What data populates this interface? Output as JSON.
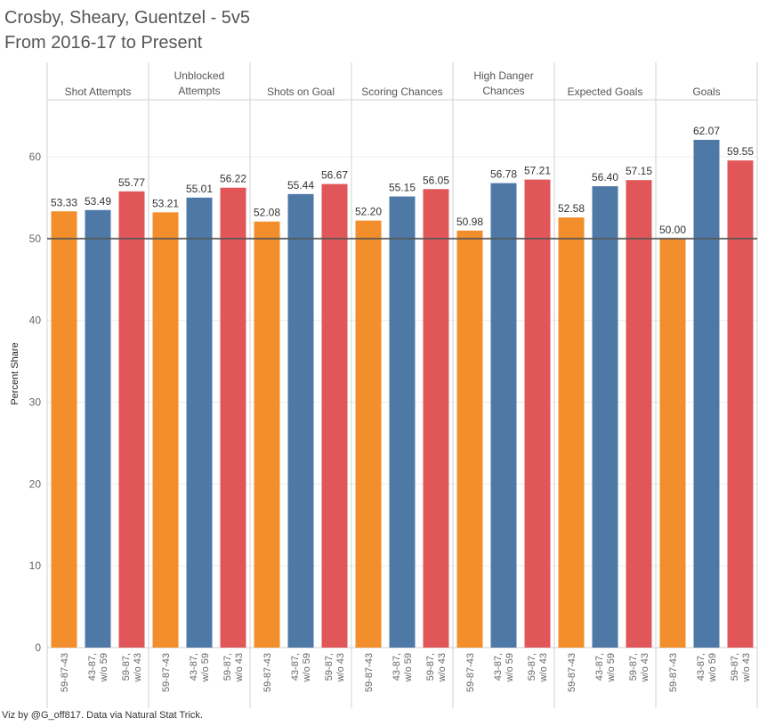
{
  "title_line1": "Crosby, Sheary, Guentzel - 5v5",
  "title_line2": "From 2016-17 to Present",
  "footer": "Viz by @G_off817. Data via Natural Stat Trick.",
  "chart_data": {
    "type": "bar",
    "ylabel": "Percent Share",
    "ylim": [
      0,
      66
    ],
    "yticks": [
      0,
      10,
      20,
      30,
      40,
      50,
      60
    ],
    "reference_line": 50,
    "grid": true,
    "panels": [
      "Shot Attempts",
      "Unblocked Attempts",
      "Shots on Goal",
      "Scoring Chances",
      "High Danger Chances",
      "Expected Goals",
      "Goals"
    ],
    "subcategories": [
      "59-87-43",
      "43-87, w/o 59",
      "59-87, w/o 43"
    ],
    "colors": [
      "#f28e2b",
      "#4e79a7",
      "#e15759"
    ],
    "values": [
      [
        53.33,
        53.49,
        55.77
      ],
      [
        53.21,
        55.01,
        56.22
      ],
      [
        52.08,
        55.44,
        56.67
      ],
      [
        52.2,
        55.15,
        56.05
      ],
      [
        50.98,
        56.78,
        57.21
      ],
      [
        52.58,
        56.4,
        57.15
      ],
      [
        50.0,
        62.07,
        59.55
      ]
    ],
    "value_labels": [
      [
        "53.33",
        "53.49",
        "55.77"
      ],
      [
        "53.21",
        "55.01",
        "56.22"
      ],
      [
        "52.08",
        "55.44",
        "56.67"
      ],
      [
        "52.20",
        "55.15",
        "56.05"
      ],
      [
        "50.98",
        "56.78",
        "57.21"
      ],
      [
        "52.58",
        "56.40",
        "57.15"
      ],
      [
        "50.00",
        "62.07",
        "59.55"
      ]
    ]
  }
}
